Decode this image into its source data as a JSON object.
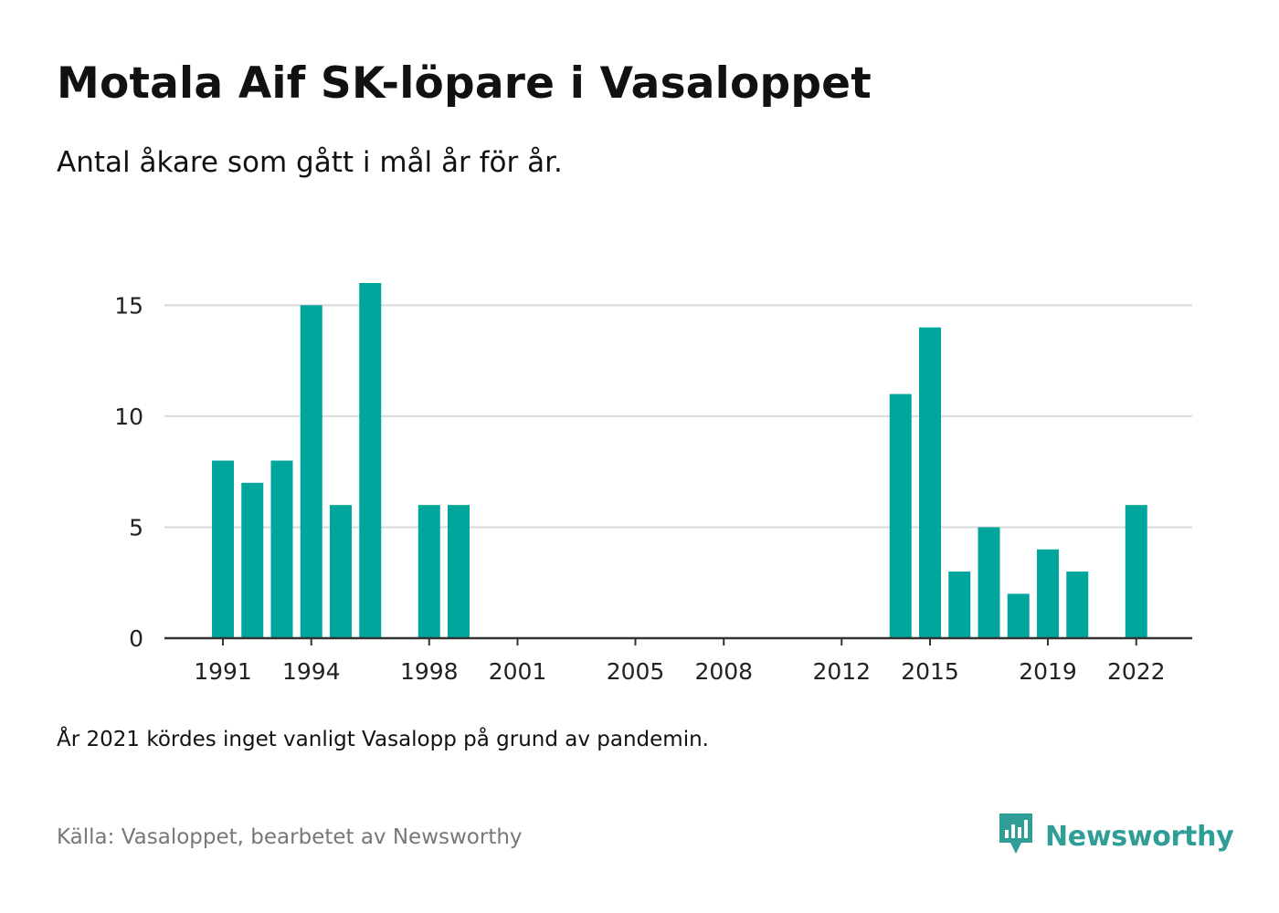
{
  "header": {
    "title": "Motala Aif SK-löpare i Vasaloppet",
    "subtitle": "Antal åkare som gått i mål år för år."
  },
  "footer": {
    "note": "År 2021 kördes inget vanligt Vasalopp på grund av pandemin.",
    "source": "Källa: Vasaloppet, bearbetet av Newsworthy",
    "brand": "Newsworthy"
  },
  "colors": {
    "bar": "#00a69c",
    "grid": "#d9d9d9",
    "axis": "#333333",
    "brand": "#2f9e97"
  },
  "icons": {
    "brand_logo": "newsworthy-logo-icon"
  },
  "chart_data": {
    "type": "bar",
    "title": "Motala Aif SK-löpare i Vasaloppet",
    "subtitle": "Antal åkare som gått i mål år för år.",
    "xlabel": "",
    "ylabel": "",
    "x": [
      1991,
      1992,
      1993,
      1994,
      1995,
      1996,
      1997,
      1998,
      1999,
      2000,
      2001,
      2002,
      2003,
      2004,
      2005,
      2006,
      2007,
      2008,
      2009,
      2010,
      2011,
      2012,
      2013,
      2014,
      2015,
      2016,
      2017,
      2018,
      2019,
      2020,
      2021,
      2022
    ],
    "values": [
      8,
      7,
      8,
      15,
      6,
      16,
      0,
      6,
      6,
      0,
      0,
      0,
      0,
      0,
      0,
      0,
      0,
      0,
      0,
      0,
      0,
      0,
      0,
      11,
      14,
      3,
      5,
      2,
      4,
      3,
      0,
      6
    ],
    "x_ticks": [
      1991,
      1994,
      1998,
      2001,
      2005,
      2008,
      2012,
      2015,
      2019,
      2022
    ],
    "y_ticks": [
      0,
      5,
      10,
      15
    ],
    "ylim": [
      0,
      16
    ],
    "grid": "horizontal"
  }
}
